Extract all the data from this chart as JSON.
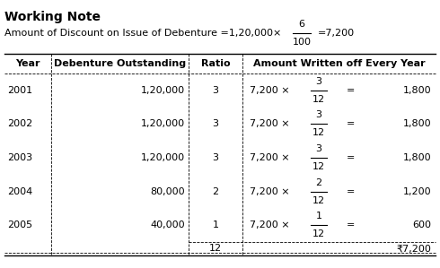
{
  "title": "Working Note",
  "formula_prefix": "Amount of Discount on Issue of Debenture =1,20,000×",
  "formula_frac_num": "6",
  "formula_frac_den": "100",
  "formula_result": "=7,200",
  "col_headers": [
    "Year",
    "Debenture Outstanding",
    "Ratio",
    "Amount Written off Every Year"
  ],
  "rows": [
    {
      "year": "2001",
      "outstanding": "1,20,000",
      "ratio": "3",
      "calc_num": "3",
      "calc_den": "12",
      "result": "1,800"
    },
    {
      "year": "2002",
      "outstanding": "1,20,000",
      "ratio": "3",
      "calc_num": "3",
      "calc_den": "12",
      "result": "1,800"
    },
    {
      "year": "2003",
      "outstanding": "1,20,000",
      "ratio": "3",
      "calc_num": "3",
      "calc_den": "12",
      "result": "1,800"
    },
    {
      "year": "2004",
      "outstanding": "80,000",
      "ratio": "2",
      "calc_num": "2",
      "calc_den": "12",
      "result": "1,200"
    },
    {
      "year": "2005",
      "outstanding": "40,000",
      "ratio": "1",
      "calc_num": "1",
      "calc_den": "12",
      "result": "600"
    }
  ],
  "total_ratio": "12",
  "total_result": "₹7,200",
  "bg_color": "#ffffff",
  "text_color": "#000000",
  "font_size": 8.0,
  "title_font_size": 10.0
}
